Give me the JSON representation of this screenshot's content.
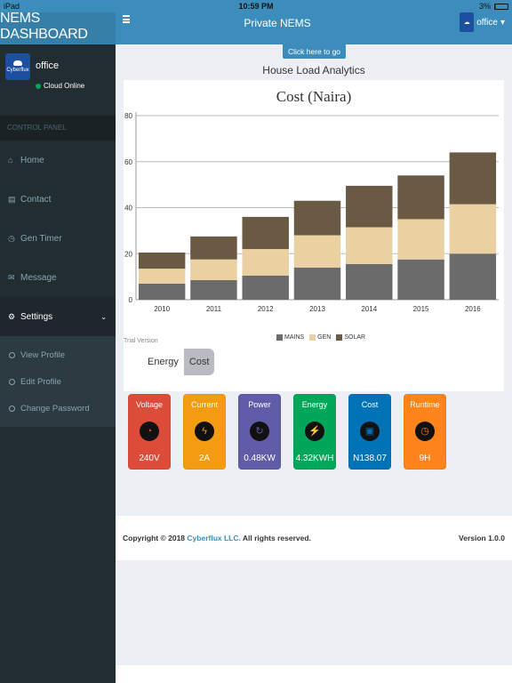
{
  "status_bar": {
    "device": "iPad",
    "time": "10:59 PM",
    "battery": "3%"
  },
  "header": {
    "brand": "NEMS DASHBOARD",
    "title": "Private NEMS",
    "user": "office",
    "user_caret": "▾"
  },
  "sidebar": {
    "user_name": "office",
    "user_status": "Cloud Online",
    "logo_text": "Cyberflux",
    "section_header": "CONTROL PANEL",
    "items": [
      {
        "label": "Home",
        "icon": "home-icon"
      },
      {
        "label": "Contact",
        "icon": "contact-icon"
      },
      {
        "label": "Gen Timer",
        "icon": "clock-icon"
      },
      {
        "label": "Message",
        "icon": "envelope-icon"
      },
      {
        "label": "Settings",
        "icon": "gears-icon"
      }
    ],
    "submenu": [
      {
        "label": "View Profile"
      },
      {
        "label": "Edit Profile"
      },
      {
        "label": "Change Password"
      }
    ]
  },
  "content": {
    "back_button": "Click here to go back",
    "analytics_title": "House Load Analytics",
    "trial_text": "Trial Version",
    "tabs": {
      "energy": "Energy",
      "cost": "Cost"
    }
  },
  "chart_data": {
    "type": "bar",
    "stacked": true,
    "title": "Cost (Naira)",
    "categories": [
      "2010",
      "2011",
      "2012",
      "2013",
      "2014",
      "2015",
      "2016"
    ],
    "series": [
      {
        "name": "MAINS",
        "color": "#6b6b6b",
        "values": [
          7,
          8.5,
          10.5,
          14,
          15.5,
          17.5,
          20
        ]
      },
      {
        "name": "GEN",
        "color": "#ebd0a1",
        "values": [
          6.5,
          9,
          11.5,
          14,
          16,
          17.5,
          21.5
        ]
      },
      {
        "name": "SOLAR",
        "color": "#6a5a44",
        "values": [
          7,
          10,
          14,
          15,
          18,
          19,
          22.5
        ]
      }
    ],
    "ylim": [
      0,
      80
    ],
    "yticks": [
      0,
      20,
      40,
      60,
      80
    ],
    "grid": true,
    "legend": "bottom"
  },
  "cards": [
    {
      "label": "Voltage",
      "value": "240V",
      "color": "#dd4b39",
      "icon": "gauge-icon",
      "glyph": "◔"
    },
    {
      "label": "Current",
      "value": "2A",
      "color": "#f39c12",
      "icon": "lightning-circle-icon",
      "glyph": "ϟ"
    },
    {
      "label": "Power",
      "value": "0.48KW",
      "color": "#605ca8",
      "icon": "power-cycle-icon",
      "glyph": "↻"
    },
    {
      "label": "Energy",
      "value": "4.32KWH",
      "color": "#00a65a",
      "icon": "bolt-icon",
      "glyph": "⚡"
    },
    {
      "label": "Cost",
      "value": "N138.07",
      "color": "#0073b7",
      "icon": "money-icon",
      "glyph": "▣"
    },
    {
      "label": "Runtime",
      "value": "9H",
      "color": "#ff851b",
      "icon": "clock-icon",
      "glyph": "◷"
    }
  ],
  "footer": {
    "copyright_prefix": "Copyright © 2018",
    "company": "Cyberflux LLC.",
    "copyright_suffix": "All rights reserved.",
    "version": "Version 1.0.0"
  }
}
